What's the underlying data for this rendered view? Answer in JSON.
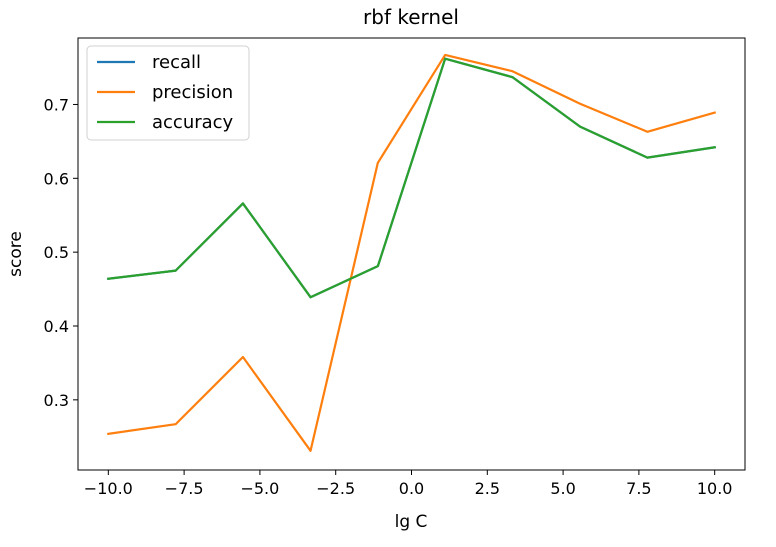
{
  "chart_data": {
    "type": "line",
    "title": "rbf kernel",
    "xlabel": "lg C",
    "ylabel": "score",
    "xlim": [
      -11.0,
      11.0
    ],
    "ylim": [
      0.205,
      0.79
    ],
    "x": [
      -10.0,
      -7.78,
      -5.56,
      -3.33,
      -1.11,
      1.11,
      3.33,
      5.56,
      7.78,
      10.0
    ],
    "series": [
      {
        "name": "recall",
        "color": "#1f77b4",
        "values": [
          0.464,
          0.475,
          0.566,
          0.439,
          0.481,
          0.762,
          0.737,
          0.67,
          0.628,
          0.642
        ]
      },
      {
        "name": "precision",
        "color": "#ff7f0e",
        "values": [
          0.254,
          0.267,
          0.358,
          0.231,
          0.621,
          0.767,
          0.745,
          0.701,
          0.663,
          0.689
        ]
      },
      {
        "name": "accuracy",
        "color": "#2ca02c",
        "values": [
          0.464,
          0.475,
          0.566,
          0.439,
          0.481,
          0.762,
          0.737,
          0.67,
          0.628,
          0.642
        ]
      }
    ],
    "xticks": [
      {
        "value": -10.0,
        "label": "−10.0"
      },
      {
        "value": -7.5,
        "label": "−7.5"
      },
      {
        "value": -5.0,
        "label": "−5.0"
      },
      {
        "value": -2.5,
        "label": "−2.5"
      },
      {
        "value": 0.0,
        "label": "0.0"
      },
      {
        "value": 2.5,
        "label": "2.5"
      },
      {
        "value": 5.0,
        "label": "5.0"
      },
      {
        "value": 7.5,
        "label": "7.5"
      },
      {
        "value": 10.0,
        "label": "10.0"
      }
    ],
    "yticks": [
      {
        "value": 0.3,
        "label": "0.3"
      },
      {
        "value": 0.4,
        "label": "0.4"
      },
      {
        "value": 0.5,
        "label": "0.5"
      },
      {
        "value": 0.6,
        "label": "0.6"
      },
      {
        "value": 0.7,
        "label": "0.7"
      }
    ],
    "grid": false,
    "legend_position": "top-left"
  }
}
